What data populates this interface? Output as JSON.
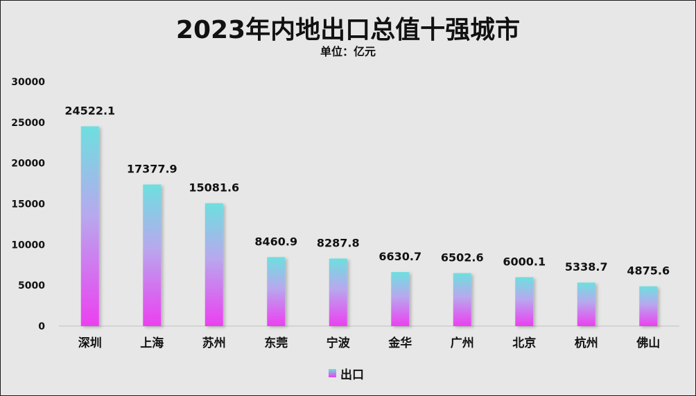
{
  "colors": {
    "background": "#e7e7e7",
    "bar_top": "#6ddfdf",
    "bar_mid": "#b8a8ee",
    "bar_bottom": "#ec3ff0",
    "axis_line": "#bfbfbf",
    "text": "#111111"
  },
  "chart_data": {
    "type": "bar",
    "title": "2023年内地出口总值十强城市",
    "subtitle": "单位：亿元",
    "xlabel": "",
    "ylabel": "",
    "categories": [
      "深圳",
      "上海",
      "苏州",
      "东莞",
      "宁波",
      "金华",
      "广州",
      "北京",
      "杭州",
      "佛山"
    ],
    "series": [
      {
        "name": "出口",
        "values": [
          24522.1,
          17377.9,
          15081.6,
          8460.9,
          8287.8,
          6630.7,
          6502.6,
          6000.1,
          5338.7,
          4875.6
        ],
        "labels": [
          "24522.1",
          "17377.9",
          "15081.6",
          "8460.9",
          "8287.8",
          "6630.7",
          "6502.6",
          "6000.1",
          "5338.7",
          "4875.6"
        ]
      }
    ],
    "ylim": [
      0,
      30000
    ],
    "y_ticks": [
      "0",
      "5000",
      "10000",
      "15000",
      "20000",
      "25000",
      "30000"
    ],
    "grid": false,
    "legend_position": "bottom-center"
  }
}
